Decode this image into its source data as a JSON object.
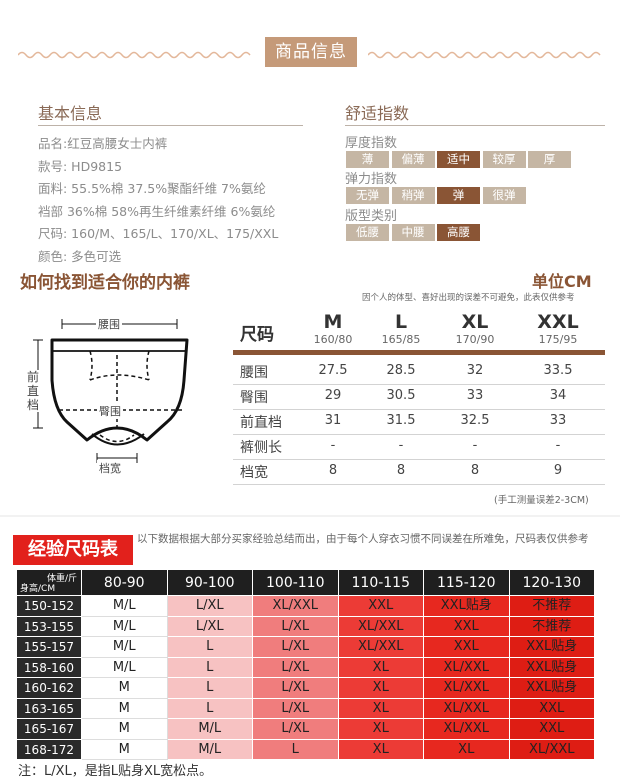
{
  "header": {
    "title": "商品信息"
  },
  "basic_info": {
    "title": "基本信息",
    "lines": [
      "品名:红豆高腰女士内裤",
      "款号:  HD9815",
      "面料:  55.5%棉 37.5%聚酯纤维  7%氨纶",
      "裆部 36%棉 58%再生纤维素纤维 6%氨纶",
      "尺码:  160/M、165/L、170/XL、175/XXL",
      "颜色:  多色可选"
    ]
  },
  "comfort": {
    "title": "舒适指数",
    "groups": [
      {
        "label": "厚度指数",
        "options": [
          "薄",
          "偏薄",
          "适中",
          "较厚",
          "厚"
        ],
        "selected_index": 2
      },
      {
        "label": "弹力指数",
        "options": [
          "无弹",
          "稍弹",
          "弹",
          "很弹"
        ],
        "selected_index": 2
      },
      {
        "label": "版型类别",
        "options": [
          "低腰",
          "中腰",
          "高腰"
        ],
        "selected_index": 2
      }
    ]
  },
  "size_guide": {
    "title": "如何找到适合你的内裤",
    "unit": "单位CM",
    "disclaimer": "因个人的体型、喜好出现的误差不可避免，此表仅供参考",
    "diagram_labels": {
      "waist": "腰围",
      "hip": "臀围",
      "rise": "前直档",
      "crotch": "档宽"
    },
    "table": {
      "header_label": "尺码",
      "sizes": [
        {
          "name": "M",
          "sub": "160/80"
        },
        {
          "name": "L",
          "sub": "165/85"
        },
        {
          "name": "XL",
          "sub": "170/90"
        },
        {
          "name": "XXL",
          "sub": "175/95"
        }
      ],
      "rows": [
        {
          "label": "腰围",
          "values": [
            "27.5",
            "28.5",
            "32",
            "33.5"
          ]
        },
        {
          "label": "臀围",
          "values": [
            "29",
            "30.5",
            "33",
            "34"
          ]
        },
        {
          "label": "前直档",
          "values": [
            "31",
            "31.5",
            "32.5",
            "33"
          ]
        },
        {
          "label": "裤侧长",
          "values": [
            "-",
            "-",
            "-",
            "-"
          ]
        },
        {
          "label": "档宽",
          "values": [
            "8",
            "8",
            "8",
            "9"
          ]
        }
      ]
    },
    "measure_note": "(手工测量误差2-3CM)"
  },
  "experience_chart": {
    "title": "经验尺码表",
    "description": "以下数据根据大部分买家经验总结而出，由于每个人穿衣习惯不同误差在所难免，尺码表仅供参考",
    "corner_top": "体重/斤",
    "corner_bottom": "身高/CM",
    "weight_columns": [
      "80-90",
      "90-100",
      "100-110",
      "110-115",
      "115-120",
      "120-130"
    ],
    "rows": [
      {
        "height": "150-152",
        "values": [
          "M/L",
          "L/XL",
          "XL/XXL",
          "XXL",
          "XXL贴身",
          "不推荐"
        ]
      },
      {
        "height": "153-155",
        "values": [
          "M/L",
          "L/XL",
          "L/XL",
          "XL/XXL",
          "XXL",
          "不推荐"
        ]
      },
      {
        "height": "155-157",
        "values": [
          "M/L",
          "L",
          "L/XL",
          "XL/XXL",
          "XXL",
          "XXL贴身"
        ]
      },
      {
        "height": "158-160",
        "values": [
          "M/L",
          "L",
          "L/XL",
          "XL",
          "XL/XXL",
          "XXL贴身"
        ]
      },
      {
        "height": "160-162",
        "values": [
          "M",
          "L",
          "L/XL",
          "XL",
          "XL/XXL",
          "XXL贴身"
        ]
      },
      {
        "height": "163-165",
        "values": [
          "M",
          "L",
          "L/XL",
          "XL",
          "XL/XXL",
          "XXL"
        ]
      },
      {
        "height": "165-167",
        "values": [
          "M",
          "M/L",
          "L/XL",
          "XL",
          "XL/XXL",
          "XXL"
        ]
      },
      {
        "height": "168-172",
        "values": [
          "M",
          "M/L",
          "L",
          "XL",
          "XL",
          "XL/XXL"
        ]
      }
    ],
    "column_colors": [
      "#ffffff",
      "#f7c2c2",
      "#f07d7d",
      "#ec3b36",
      "#e7281f",
      "#de1d14"
    ],
    "footer": "注：L/XL，是指L贴身XL宽松点。"
  }
}
